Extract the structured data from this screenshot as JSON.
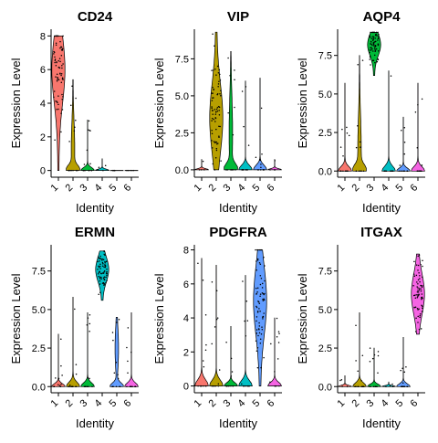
{
  "chart_data": [
    {
      "type": "violin",
      "title": "CD24",
      "xlabel": "Identity",
      "ylabel": "Expression Level",
      "categories": [
        "1",
        "2",
        "3",
        "4",
        "5",
        "6"
      ],
      "ylim": [
        -0.4,
        8.4
      ],
      "yticks": [
        0,
        2,
        4,
        6,
        8
      ],
      "series": [
        {
          "category": "1",
          "color": "#F8766D",
          "min": 0,
          "max": 8.0,
          "median": 6.0
        },
        {
          "category": "2",
          "color": "#B79F00",
          "min": 0,
          "max": 5.4,
          "median": 0.5
        },
        {
          "category": "3",
          "color": "#00BA38",
          "min": 0,
          "max": 3.0,
          "median": 0
        },
        {
          "category": "4",
          "color": "#00BFC4",
          "min": 0,
          "max": 0.7,
          "median": 0
        },
        {
          "category": "5",
          "color": "#619CFF",
          "min": 0,
          "max": 0,
          "median": 0
        },
        {
          "category": "6",
          "color": "#F564E3",
          "min": 0,
          "max": 0,
          "median": 0
        }
      ]
    },
    {
      "type": "violin",
      "title": "VIP",
      "xlabel": "Identity",
      "ylabel": "Expression Level",
      "categories": [
        "1",
        "2",
        "3",
        "4",
        "5",
        "6"
      ],
      "ylim": [
        -0.5,
        9.5
      ],
      "yticks": [
        0.0,
        2.5,
        5.0,
        7.5
      ],
      "ytick_labels": [
        "0.0",
        "2.5",
        "5.0",
        "7.5"
      ],
      "series": [
        {
          "category": "1",
          "color": "#F8766D",
          "min": 0,
          "max": 0.7,
          "median": 0
        },
        {
          "category": "2",
          "color": "#B79F00",
          "min": 0,
          "max": 9.3,
          "median": 3.5
        },
        {
          "category": "3",
          "color": "#00BA38",
          "min": 0,
          "max": 8.0,
          "median": 1.0
        },
        {
          "category": "4",
          "color": "#00BFC4",
          "min": 0,
          "max": 6.0,
          "median": 0
        },
        {
          "category": "5",
          "color": "#619CFF",
          "min": 0,
          "max": 6.2,
          "median": 0
        },
        {
          "category": "6",
          "color": "#F564E3",
          "min": 0,
          "max": 0.7,
          "median": 0
        }
      ]
    },
    {
      "type": "violin",
      "title": "AQP4",
      "xlabel": "Identity",
      "ylabel": "Expression Level",
      "categories": [
        "1",
        "2",
        "3",
        "4",
        "5",
        "6"
      ],
      "ylim": [
        -0.4,
        9.2
      ],
      "yticks": [
        0.0,
        2.5,
        5.0,
        7.5
      ],
      "ytick_labels": [
        "0.0",
        "2.5",
        "5.0",
        "7.5"
      ],
      "series": [
        {
          "category": "1",
          "color": "#F8766D",
          "min": 0,
          "max": 5.7,
          "median": 0
        },
        {
          "category": "2",
          "color": "#B79F00",
          "min": 0,
          "max": 7.5,
          "median": 0.5
        },
        {
          "category": "3",
          "color": "#00BA38",
          "min": 6.2,
          "max": 9.0,
          "median": 8.2
        },
        {
          "category": "4",
          "color": "#00BFC4",
          "min": 0,
          "max": 6.5,
          "median": 0
        },
        {
          "category": "5",
          "color": "#619CFF",
          "min": 0,
          "max": 3.5,
          "median": 0
        },
        {
          "category": "6",
          "color": "#F564E3",
          "min": 0,
          "max": 5.7,
          "median": 0
        }
      ]
    },
    {
      "type": "violin",
      "title": "ERMN",
      "xlabel": "Identity",
      "ylabel": "Expression Level",
      "categories": [
        "1",
        "2",
        "3",
        "4",
        "5",
        "6"
      ],
      "ylim": [
        -0.4,
        9.2
      ],
      "yticks": [
        0.0,
        2.5,
        5.0,
        7.5
      ],
      "ytick_labels": [
        "0.0",
        "2.5",
        "5.0",
        "7.5"
      ],
      "series": [
        {
          "category": "1",
          "color": "#F8766D",
          "min": 0,
          "max": 3.4,
          "median": 0
        },
        {
          "category": "2",
          "color": "#B79F00",
          "min": 0,
          "max": 5.8,
          "median": 0
        },
        {
          "category": "3",
          "color": "#00BA38",
          "min": 0,
          "max": 4.8,
          "median": 0
        },
        {
          "category": "4",
          "color": "#00BFC4",
          "min": 5.6,
          "max": 8.8,
          "median": 7.6
        },
        {
          "category": "5",
          "color": "#619CFF",
          "min": 0,
          "max": 4.5,
          "median": 1.0
        },
        {
          "category": "6",
          "color": "#F564E3",
          "min": 0,
          "max": 4.8,
          "median": 0
        }
      ]
    },
    {
      "type": "violin",
      "title": "PDGFRA",
      "xlabel": "Identity",
      "ylabel": "Expression Level",
      "categories": [
        "1",
        "2",
        "3",
        "4",
        "5",
        "6"
      ],
      "ylim": [
        -0.4,
        8.3
      ],
      "yticks": [
        0,
        2,
        4,
        6,
        8
      ],
      "series": [
        {
          "category": "1",
          "color": "#F8766D",
          "min": 0,
          "max": 7.5,
          "median": 0
        },
        {
          "category": "2",
          "color": "#B79F00",
          "min": 0,
          "max": 7.1,
          "median": 0
        },
        {
          "category": "3",
          "color": "#00BA38",
          "min": 0,
          "max": 3.5,
          "median": 0
        },
        {
          "category": "4",
          "color": "#00BFC4",
          "min": 0,
          "max": 6.5,
          "median": 0
        },
        {
          "category": "5",
          "color": "#619CFF",
          "min": 0,
          "max": 8.0,
          "median": 5.0
        },
        {
          "category": "6",
          "color": "#F564E3",
          "min": 0,
          "max": 4.0,
          "median": 0
        }
      ]
    },
    {
      "type": "violin",
      "title": "ITGAX",
      "xlabel": "Identity",
      "ylabel": "Expression Level",
      "categories": [
        "1",
        "2",
        "3",
        "4",
        "5",
        "6"
      ],
      "ylim": [
        -0.4,
        9.2
      ],
      "yticks": [
        0.0,
        2.5,
        5.0,
        7.5
      ],
      "ytick_labels": [
        "0.0",
        "2.5",
        "5.0",
        "7.5"
      ],
      "series": [
        {
          "category": "1",
          "color": "#F8766D",
          "min": 0,
          "max": 0.7,
          "median": 0
        },
        {
          "category": "2",
          "color": "#B79F00",
          "min": 0,
          "max": 4.8,
          "median": 0
        },
        {
          "category": "3",
          "color": "#00BA38",
          "min": 0,
          "max": 2.5,
          "median": 0
        },
        {
          "category": "4",
          "color": "#00BFC4",
          "min": 0,
          "max": 0.3,
          "median": 0
        },
        {
          "category": "5",
          "color": "#619CFF",
          "min": 0,
          "max": 3.2,
          "median": 0
        },
        {
          "category": "6",
          "color": "#F564E3",
          "min": 3.4,
          "max": 8.6,
          "median": 6.0
        }
      ]
    }
  ]
}
